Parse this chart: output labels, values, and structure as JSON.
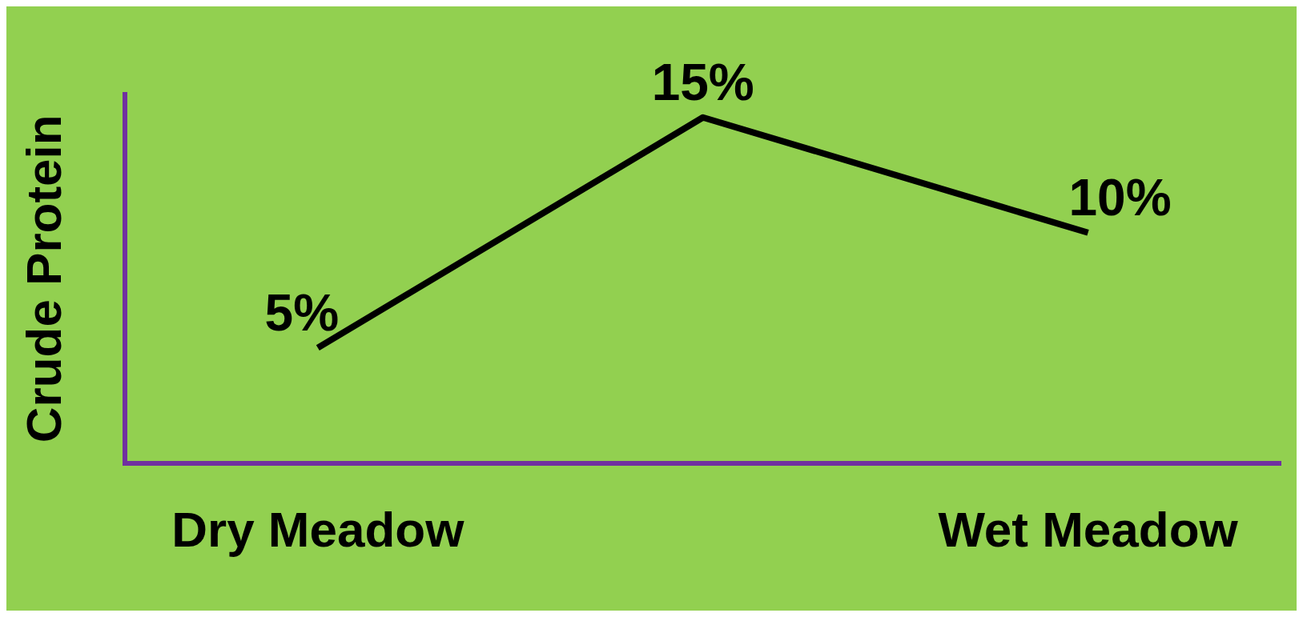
{
  "chart_data": {
    "type": "line",
    "ylabel": "Crude Protein",
    "categories": [
      "Dry Meadow",
      null,
      "Wet Meadow"
    ],
    "series": [
      {
        "color": "#000000",
        "values": [
          5,
          15,
          10
        ]
      }
    ],
    "data_labels": true,
    "value_labels": [
      "5%",
      "15%",
      "10%"
    ],
    "grid": false,
    "legend": false,
    "marker": "none",
    "tick_labels": "x"
  }
}
